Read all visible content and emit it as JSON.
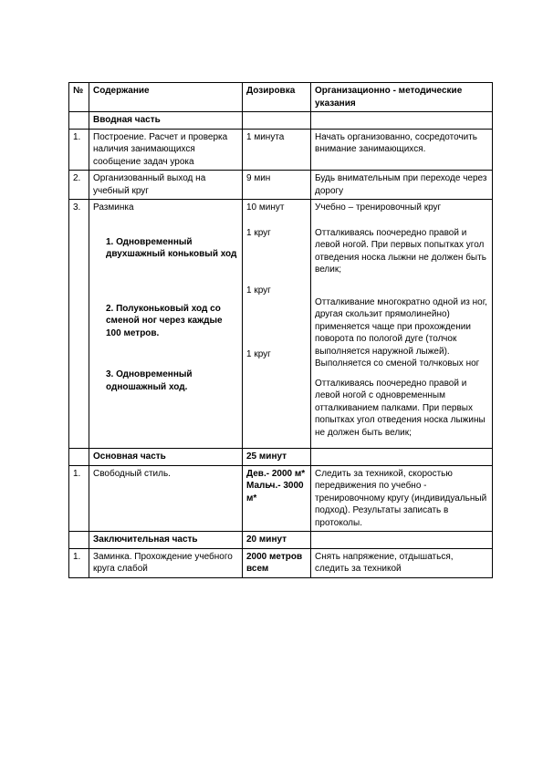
{
  "headers": {
    "num": "№",
    "content": "Содержание",
    "dose": "Дозировка",
    "notes": "Организационно - методические указания"
  },
  "sections": {
    "intro": "Вводная часть",
    "main": "Основная часть",
    "final": "Заключительная часть"
  },
  "rows": {
    "r1": {
      "num": "1.",
      "content": "Построение. Расчет и проверка наличия занимающихся сообщение задач урока",
      "dose": "1 минута",
      "notes": "Начать организованно, сосредоточить внимание занимающихся."
    },
    "r2": {
      "num": "2.",
      "content": "Организованный выход на учебный круг",
      "dose": "9 мин",
      "notes": "Будь внимательным при переходе через дорогу"
    },
    "r3": {
      "num": "3.",
      "content_title": "Разминка",
      "sub1": "1. Одновременный двухшажный коньковый ход",
      "sub2": "2. Полуконьковый ход со сменой ног через каждые 100 метров.",
      "sub3": "3. Одновременный одношажный ход.",
      "dose_title": "10 минут",
      "dose1": "1 круг",
      "dose2": "1 круг",
      "dose3": "1 круг",
      "notes_title": "Учебно – тренировочный круг",
      "notes1": "Отталкиваясь поочередно правой и левой ногой. При первых попытках угол отведения носка лыжни не должен быть велик;",
      "notes2": "Отталкивание многократно одной из ног, другая скользит прямолинейно) применяется чаще при прохождении поворота по пологой дуге (толчок выполняется наружной лыжей).  Выполняется со сменой толчковых ног",
      "notes3": "Отталкиваясь поочередно правой и левой ногой с одновременным отталкиванием палками. При первых попытках угол отведения носка лыжины не должен быть велик;"
    },
    "main_dose": "25 минут",
    "m1": {
      "num": "1.",
      "content": "Свободный стиль.",
      "dose": "Дев.- 2000 м*\nМальч.- 3000 м*",
      "notes": "Следить за техникой, скоростью передвижения по учебно - тренировочному кругу (индивидуальный подход). Результаты записать в протоколы."
    },
    "final_dose": "20 минут",
    "f1": {
      "num": "1.",
      "content": "Заминка. Прохождение учебного круга слабой",
      "dose": "2000 метров всем",
      "notes": "Снять напряжение, отдышаться, следить за техникой"
    }
  }
}
